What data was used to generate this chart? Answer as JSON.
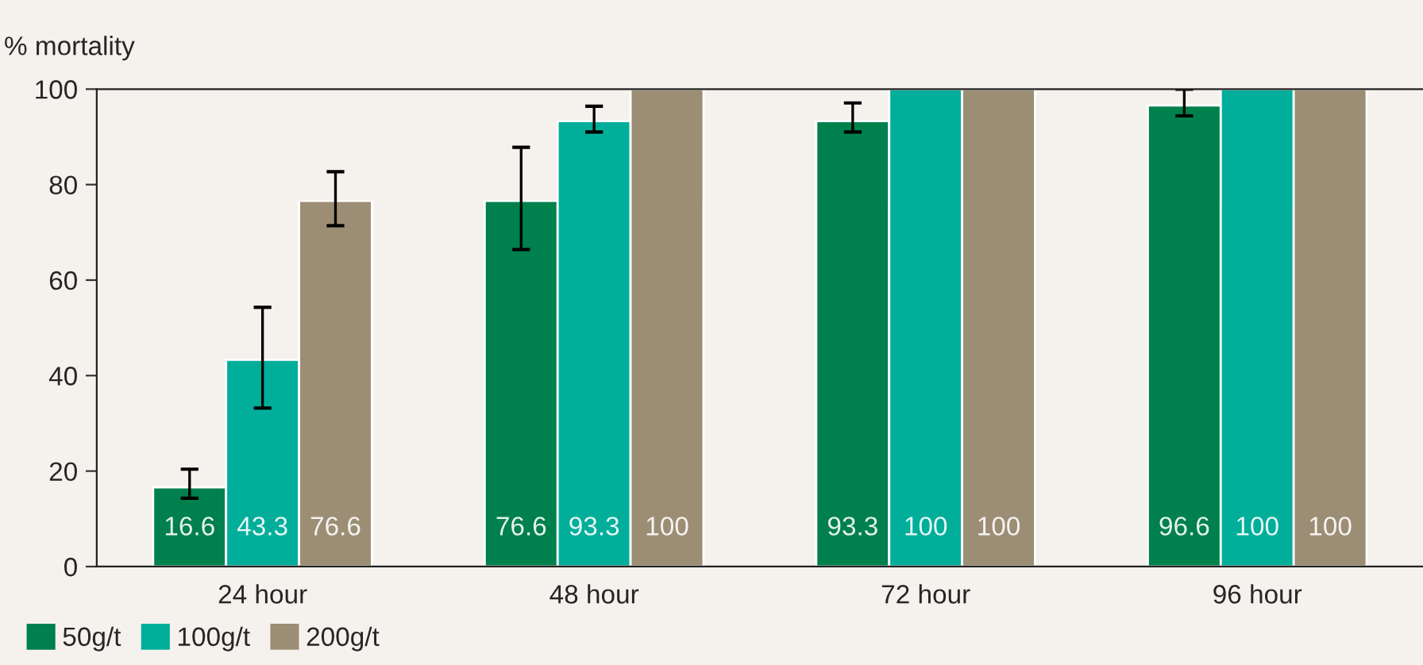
{
  "chart_data": {
    "type": "bar",
    "ylabel": "% mortality",
    "categories": [
      "24 hour",
      "48 hour",
      "72 hour",
      "96 hour"
    ],
    "series": [
      {
        "name": "50g/t",
        "color": "#00804c",
        "values": [
          16.6,
          76.6,
          93.3,
          96.6
        ],
        "errors": [
          [
            14.3,
            20.4
          ],
          [
            66.4,
            87.8
          ],
          [
            91.0,
            97.1
          ],
          [
            94.4,
            100
          ]
        ]
      },
      {
        "name": "100g/t",
        "color": "#00ae9a",
        "values": [
          43.3,
          93.3,
          100,
          100
        ],
        "errors": [
          [
            33.2,
            54.3
          ],
          [
            91.0,
            96.4
          ],
          null,
          null
        ]
      },
      {
        "name": "200g/t",
        "color": "#9c8e74",
        "values": [
          76.6,
          100,
          100,
          100
        ],
        "errors": [
          [
            71.4,
            82.7
          ],
          null,
          null,
          null
        ]
      }
    ],
    "ylim": [
      0,
      100
    ],
    "yticks": [
      0,
      20,
      40,
      60,
      80,
      100
    ],
    "data_labels": true,
    "grid": false,
    "legend": "bottom left"
  }
}
